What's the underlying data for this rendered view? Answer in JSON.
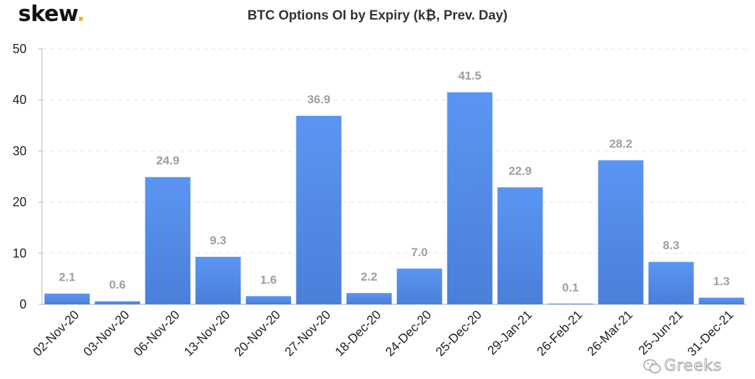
{
  "brand": {
    "name": "skew",
    "dot": ".",
    "accent": "#f0b429"
  },
  "watermark": {
    "text": "Greeks",
    "icon": "wechat-icon"
  },
  "colors": {
    "bar_top": "#5b95f3",
    "bar_bottom": "#4a7fd9",
    "label": "#9aa0a6",
    "grid": "#e6e6e6"
  },
  "chart_data": {
    "type": "bar",
    "title": "BTC Options OI by Expiry (k₿, Prev. Day)",
    "xlabel": "",
    "ylabel": "",
    "categories": [
      "02-Nov-20",
      "03-Nov-20",
      "06-Nov-20",
      "13-Nov-20",
      "20-Nov-20",
      "27-Nov-20",
      "18-Dec-20",
      "24-Dec-20",
      "25-Dec-20",
      "29-Jan-21",
      "26-Feb-21",
      "26-Mar-21",
      "25-Jun-21",
      "31-Dec-21"
    ],
    "values": [
      2.1,
      0.6,
      24.9,
      9.3,
      1.6,
      36.9,
      2.2,
      7.0,
      41.5,
      22.9,
      0.1,
      28.2,
      8.3,
      1.3
    ],
    "value_labels": [
      "2.1",
      "0.6",
      "24.9",
      "9.3",
      "1.6",
      "36.9",
      "2.2",
      "7.0",
      "41.5",
      "22.9",
      "0.1",
      "28.2",
      "8.3",
      "1.3"
    ],
    "ylim": [
      0,
      50
    ],
    "yticks": [
      0,
      10,
      20,
      30,
      40,
      50
    ],
    "grid": true,
    "legend": "none"
  }
}
